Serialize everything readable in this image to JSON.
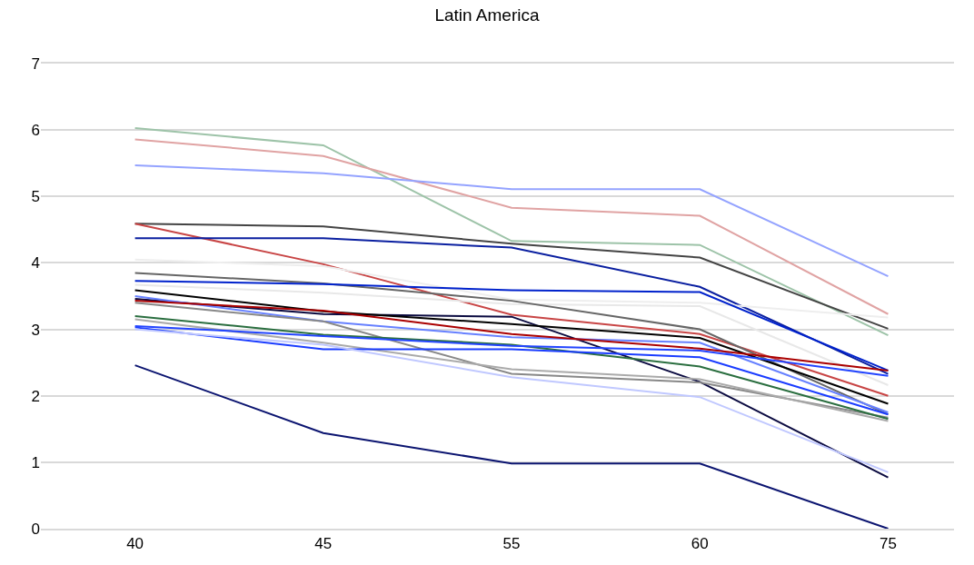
{
  "chart_data": {
    "type": "line",
    "title": "Latin America",
    "categories": [
      "40",
      "45",
      "55",
      "60",
      "75"
    ],
    "series": [
      {
        "color": "#9dc3a8",
        "values": [
          6.03,
          5.77,
          4.33,
          4.27,
          2.91
        ]
      },
      {
        "color": "#e0a3a3",
        "values": [
          5.86,
          5.61,
          4.83,
          4.71,
          3.23
        ]
      },
      {
        "color": "#94a3ff",
        "values": [
          5.47,
          5.35,
          5.11,
          5.11,
          3.8
        ]
      },
      {
        "color": "#444444",
        "values": [
          4.59,
          4.55,
          4.29,
          4.08,
          3.01
        ]
      },
      {
        "color": "#c84545",
        "values": [
          4.59,
          3.98,
          3.22,
          2.93,
          2
        ]
      },
      {
        "color": "#0a1fa0",
        "values": [
          4.37,
          4.37,
          4.23,
          3.64,
          2.33
        ]
      },
      {
        "color": "#eeeeee",
        "values": [
          4.05,
          3.95,
          3.45,
          3.4,
          3.18
        ]
      },
      {
        "color": "#e8e8e8",
        "values": [
          3.67,
          3.55,
          3.38,
          3.35,
          2.16
        ]
      },
      {
        "color": "#666666",
        "values": [
          3.85,
          3.69,
          3.43,
          3,
          1.72
        ]
      },
      {
        "color": "#0022cc",
        "values": [
          3.73,
          3.68,
          3.59,
          3.56,
          2.38
        ]
      },
      {
        "color": "#0a0a40",
        "values": [
          3.46,
          3.23,
          3.19,
          2.21,
          0.77
        ]
      },
      {
        "color": "#000000",
        "values": [
          3.59,
          3.27,
          3.08,
          2.87,
          1.88
        ]
      },
      {
        "color": "#6680ff",
        "values": [
          3.5,
          3.12,
          2.88,
          2.8,
          1.75
        ]
      },
      {
        "color": "#aa0000",
        "values": [
          3.43,
          3.28,
          2.93,
          2.71,
          2.38
        ]
      },
      {
        "color": "#888888",
        "values": [
          3.4,
          3.12,
          2.33,
          2.2,
          1.67
        ]
      },
      {
        "color": "#2a6e3f",
        "values": [
          3.2,
          2.92,
          2.77,
          2.44,
          1.65
        ]
      },
      {
        "color": "#aaaaaa",
        "values": [
          3.15,
          2.8,
          2.4,
          2.25,
          1.62
        ]
      },
      {
        "color": "#1a3cff",
        "values": [
          3.03,
          2.7,
          2.7,
          2.58,
          1.72
        ]
      },
      {
        "color": "#2244ff",
        "values": [
          3.05,
          2.9,
          2.75,
          2.68,
          2.3
        ]
      },
      {
        "color": "#c0c8ff",
        "values": [
          3,
          2.77,
          2.28,
          1.98,
          0.85
        ]
      },
      {
        "color": "#0b1470",
        "values": [
          2.46,
          1.44,
          0.98,
          0.98,
          0
        ]
      }
    ],
    "ylim": [
      0,
      7
    ],
    "yticks": [
      0,
      1,
      2,
      3,
      4,
      5,
      6,
      7
    ],
    "grid": "y",
    "marker": "none",
    "line_style": "solid"
  }
}
